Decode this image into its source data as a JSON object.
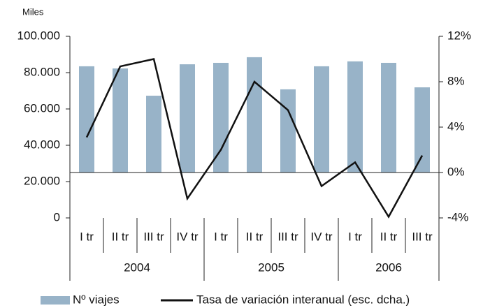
{
  "chart_data": {
    "type": "bar-line",
    "y_label": "Miles",
    "groups": [
      {
        "name": "2004",
        "categories": [
          "I tr",
          "II tr",
          "III tr",
          "IV tr"
        ]
      },
      {
        "name": "2005",
        "categories": [
          "I tr",
          "II tr",
          "III tr",
          "IV tr"
        ]
      },
      {
        "name": "2006",
        "categories": [
          "I tr",
          "II tr",
          "III tr"
        ]
      }
    ],
    "series": [
      {
        "name": "Nº viajes",
        "type": "bar",
        "color": "#98b3c8",
        "values": [
          83500,
          82300,
          67300,
          84600,
          85400,
          88500,
          70800,
          83500,
          86200,
          85400,
          71900
        ]
      },
      {
        "name": "Tasa de variación interanual (esc. dcha.)",
        "type": "line",
        "axis": "y2",
        "color": "#111111",
        "values": [
          3.1,
          9.35,
          10.0,
          -2.3,
          2.0,
          8.0,
          5.5,
          -1.2,
          0.9,
          -3.9,
          1.5
        ]
      }
    ],
    "ylim": [
      0,
      100000
    ],
    "yticks": [
      0,
      {
        "value": 20000,
        "label": "20.000"
      },
      {
        "value": 40000,
        "label": "40.000"
      },
      {
        "value": 60000,
        "label": "60.000"
      },
      {
        "value": 80000,
        "label": "80.000"
      },
      {
        "value": 100000,
        "label": "100.000"
      }
    ],
    "y2lim": [
      -4,
      12
    ],
    "y2ticks": [
      {
        "value": -4,
        "label": "-4%"
      },
      {
        "value": 0,
        "label": "0%"
      },
      {
        "value": 4,
        "label": "4%"
      },
      {
        "value": 8,
        "label": "8%"
      },
      {
        "value": 12,
        "label": "12%"
      }
    ]
  }
}
